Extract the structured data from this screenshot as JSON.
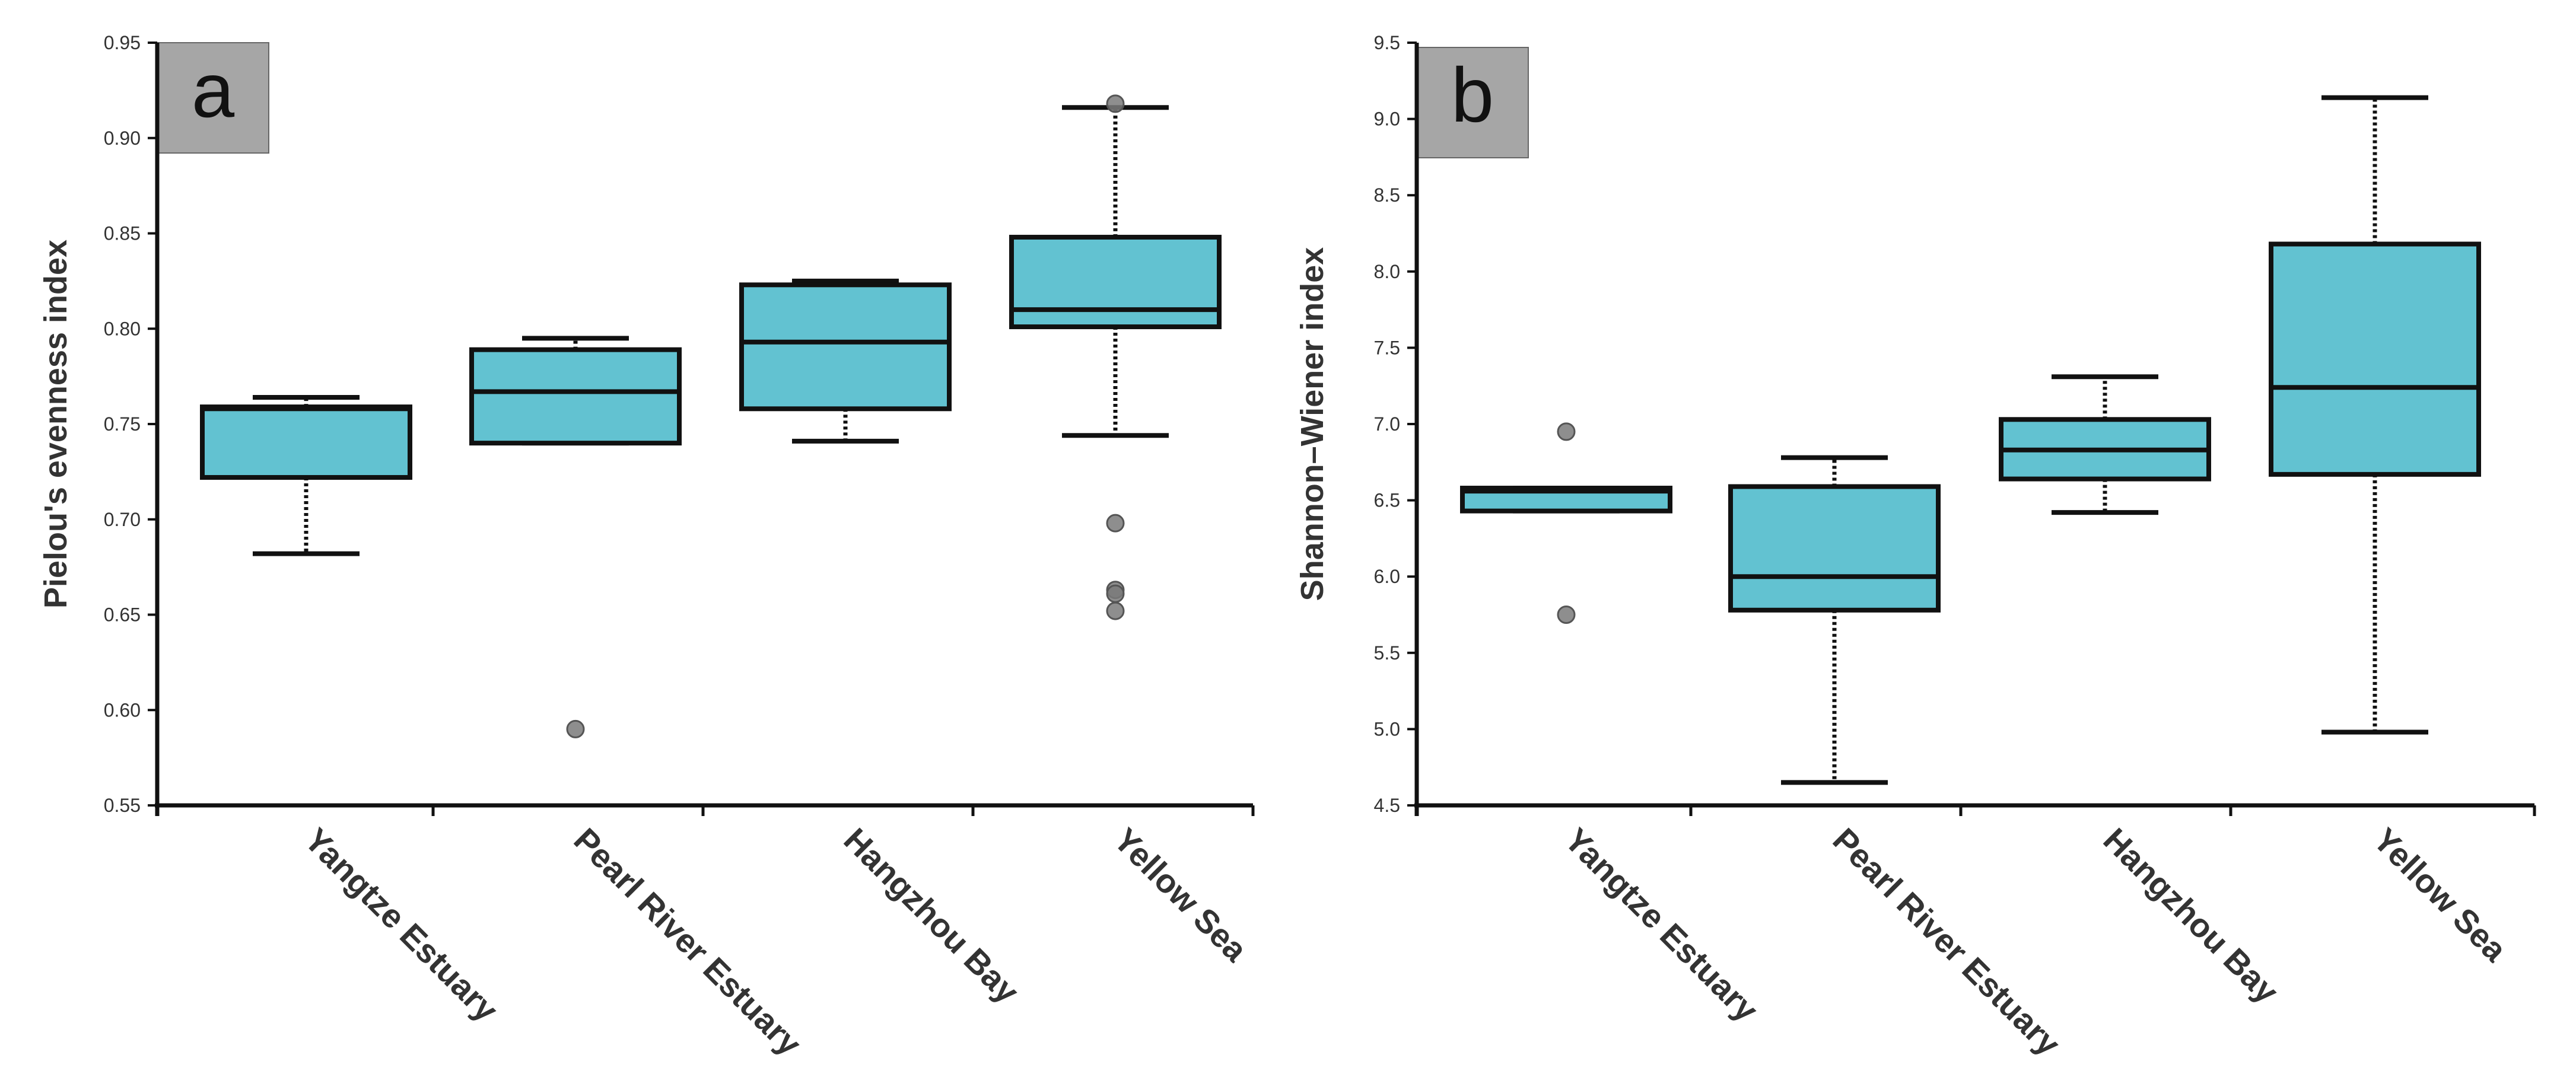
{
  "chart_data": [
    {
      "type": "box",
      "panel_label": "a",
      "title": "",
      "xlabel": "",
      "ylabel": "Pielou's evenness index",
      "ylim": [
        0.55,
        0.95
      ],
      "yticks": [
        "0.55",
        "0.60",
        "0.65",
        "0.70",
        "0.75",
        "0.80",
        "0.85",
        "0.90",
        "0.95"
      ],
      "categories": [
        "Yangtze Estuary",
        "Pearl River Estuary",
        "Hangzhou Bay",
        "Yellow Sea"
      ],
      "boxes": [
        {
          "category": "Yangtze Estuary",
          "whisker_low": 0.682,
          "q1": 0.722,
          "median": 0.758,
          "q3": 0.759,
          "whisker_high": 0.764,
          "outliers": []
        },
        {
          "category": "Pearl River Estuary",
          "whisker_low": 0.74,
          "q1": 0.74,
          "median": 0.767,
          "q3": 0.789,
          "whisker_high": 0.795,
          "outliers": [
            0.59
          ]
        },
        {
          "category": "Hangzhou Bay",
          "whisker_low": 0.741,
          "q1": 0.758,
          "median": 0.793,
          "q3": 0.823,
          "whisker_high": 0.825,
          "outliers": []
        },
        {
          "category": "Yellow Sea",
          "whisker_low": 0.744,
          "q1": 0.801,
          "median": 0.81,
          "q3": 0.848,
          "whisker_high": 0.916,
          "outliers": [
            0.918,
            0.698,
            0.663,
            0.661,
            0.652
          ]
        }
      ]
    },
    {
      "type": "box",
      "panel_label": "b",
      "title": "",
      "xlabel": "",
      "ylabel": "Shannon–Wiener index",
      "ylim": [
        4.5,
        9.5
      ],
      "yticks": [
        "4.5",
        "5.0",
        "5.5",
        "6.0",
        "6.5",
        "7.0",
        "7.5",
        "8.0",
        "8.5",
        "9.0",
        "9.5"
      ],
      "categories": [
        "Yangtze Estuary",
        "Pearl River Estuary",
        "Hangzhou Bay",
        "Yellow Sea"
      ],
      "boxes": [
        {
          "category": "Yangtze Estuary",
          "whisker_low": 6.43,
          "q1": 6.43,
          "median": 6.56,
          "q3": 6.58,
          "whisker_high": 6.58,
          "outliers": [
            6.95,
            5.75
          ]
        },
        {
          "category": "Pearl River Estuary",
          "whisker_low": 4.65,
          "q1": 5.78,
          "median": 6.0,
          "q3": 6.59,
          "whisker_high": 6.78,
          "outliers": []
        },
        {
          "category": "Hangzhou Bay",
          "whisker_low": 6.42,
          "q1": 6.64,
          "median": 6.83,
          "q3": 7.03,
          "whisker_high": 7.31,
          "outliers": []
        },
        {
          "category": "Yellow Sea",
          "whisker_low": 4.98,
          "q1": 6.67,
          "median": 7.24,
          "q3": 8.18,
          "whisker_high": 9.14,
          "outliers": []
        }
      ]
    }
  ],
  "colors": {
    "box_fill": "#62c2d1",
    "stroke": "#111111",
    "outlier": "#7a7a7a",
    "label_box": "#a6a6a6",
    "tick_text": "#333333",
    "axis_title": "#333333"
  }
}
